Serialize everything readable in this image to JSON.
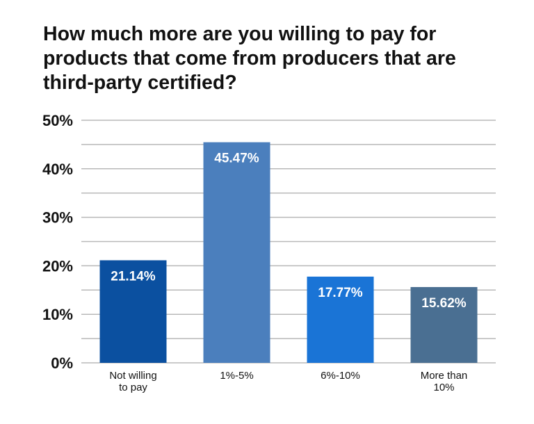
{
  "title_lines": [
    "How much more are you willing to pay for",
    "products that come from producers that are",
    "third-party certified?"
  ],
  "chart_data": {
    "type": "bar",
    "title": "How much more are you willing to pay for products that come from producers that are third-party certified?",
    "categories": [
      "Not willing to pay",
      "1%-5%",
      "6%-10%",
      "More than 10%"
    ],
    "category_label_lines": [
      [
        "Not willing",
        "to pay"
      ],
      [
        "1%-5%"
      ],
      [
        "6%-10%"
      ],
      [
        "More than",
        "10%"
      ]
    ],
    "values": [
      21.14,
      45.47,
      17.77,
      15.62
    ],
    "data_labels": [
      "21.14%",
      "45.47%",
      "17.77%",
      "15.62%"
    ],
    "bar_colors": [
      "#0b50a0",
      "#4b7fbd",
      "#1a74d6",
      "#4a6f92"
    ],
    "ylim": [
      0,
      50
    ],
    "y_ticks": [
      0,
      10,
      20,
      30,
      40,
      50
    ],
    "y_tick_labels": [
      "0%",
      "10%",
      "20%",
      "30%",
      "40%",
      "50%"
    ],
    "gridlines": [
      0,
      5,
      10,
      15,
      20,
      25,
      30,
      35,
      40,
      45,
      50
    ],
    "grid": true,
    "gridline_color": "#b8b8b8",
    "xlabel": "",
    "ylabel": ""
  }
}
